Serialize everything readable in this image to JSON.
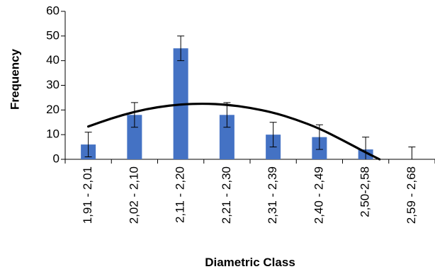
{
  "chart_data": {
    "type": "bar",
    "title": "",
    "xlabel": "Diametric Class",
    "ylabel": "Frequency",
    "ylim": [
      0,
      60
    ],
    "yticks": [
      0,
      10,
      20,
      30,
      40,
      50,
      60
    ],
    "grid": false,
    "legend": "none",
    "categories": [
      "1,91 - 2,01",
      "2,02 - 2,10",
      "2,11 - 2,20",
      "2,21 - 2,30",
      "2,31 - 2,39",
      "2,40 - 2,49",
      "2,50-2,58",
      "2,59 - 2,68"
    ],
    "series": [
      {
        "values": [
          6,
          18,
          45,
          18,
          10,
          9,
          4,
          0
        ],
        "error": [
          5,
          5,
          5,
          5,
          5,
          5,
          5,
          5
        ],
        "color": "#4472C4"
      }
    ],
    "trendline": {
      "type": "polynomial",
      "color": "#000000",
      "points": [
        {
          "x": 0.0,
          "y": 13.3
        },
        {
          "x": 0.5,
          "y": 16.6
        },
        {
          "x": 1.0,
          "y": 19.3
        },
        {
          "x": 1.5,
          "y": 21.2
        },
        {
          "x": 2.0,
          "y": 22.3
        },
        {
          "x": 2.5,
          "y": 22.6
        },
        {
          "x": 3.0,
          "y": 22.2
        },
        {
          "x": 3.5,
          "y": 20.9
        },
        {
          "x": 4.0,
          "y": 19.0
        },
        {
          "x": 4.5,
          "y": 16.1
        },
        {
          "x": 5.0,
          "y": 12.5
        },
        {
          "x": 5.5,
          "y": 7.8
        },
        {
          "x": 6.0,
          "y": 2.8
        },
        {
          "x": 6.3,
          "y": 0.0
        }
      ]
    }
  }
}
